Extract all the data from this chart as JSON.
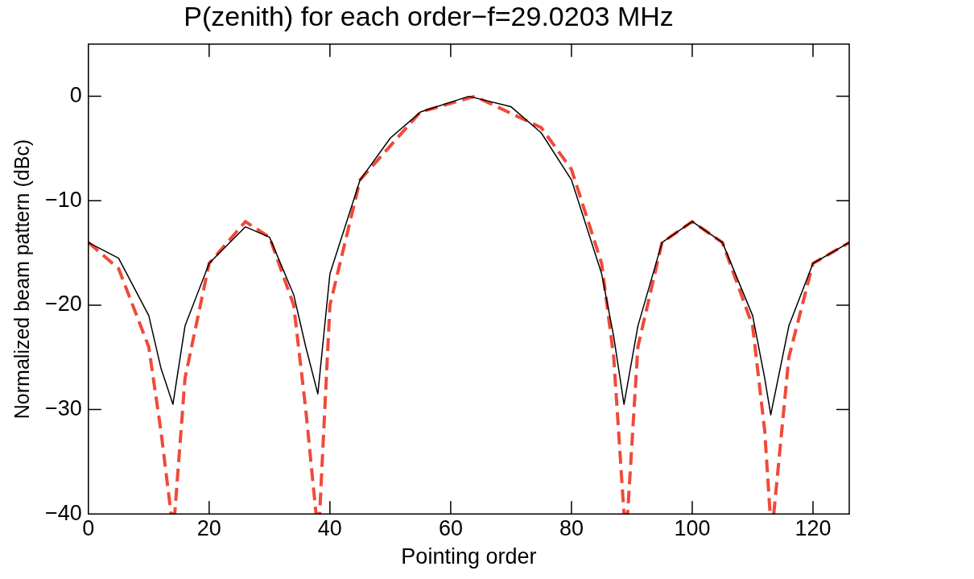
{
  "chart_data": {
    "type": "line",
    "title": "P(zenith) for each order−f=29.0203 MHz",
    "xlabel": "Pointing order",
    "ylabel": "Normalized beam pattern (dBc)",
    "xlim": [
      0,
      126
    ],
    "ylim": [
      -40,
      5
    ],
    "xticks": [
      0,
      20,
      40,
      60,
      80,
      100,
      120
    ],
    "yticks": [
      {
        "value": 0,
        "label": "0"
      },
      {
        "value": -10,
        "label": "−10"
      },
      {
        "value": -20,
        "label": "−20"
      },
      {
        "value": -30,
        "label": "−30"
      },
      {
        "value": -40,
        "label": "−40"
      }
    ],
    "grid": false,
    "legend": false,
    "marker": "none",
    "series": [
      {
        "color": "#000000",
        "line_style": "solid",
        "x": [
          0,
          5,
          10,
          12,
          14,
          16,
          20,
          26,
          30,
          34,
          36,
          38,
          40,
          45,
          50,
          55,
          63,
          70,
          75,
          80,
          85,
          87,
          88.7,
          91,
          95,
          100,
          105,
          110,
          112,
          113,
          116,
          120,
          126
        ],
        "values": [
          -14,
          -15.5,
          -21,
          -26,
          -29.5,
          -22,
          -16,
          -12.5,
          -13.5,
          -19,
          -24,
          -28.5,
          -17,
          -8,
          -4,
          -1.5,
          0,
          -1,
          -3.5,
          -8,
          -17,
          -23,
          -29.5,
          -22,
          -14,
          -12,
          -14,
          -21,
          -27,
          -30.5,
          -22,
          -16,
          -14
        ]
      },
      {
        "color": "#f04a3a",
        "line_style": "dashed",
        "x": [
          0,
          5,
          10,
          12,
          13.7,
          14.3,
          16,
          20,
          26,
          30,
          34,
          36,
          37.7,
          38.3,
          40,
          45,
          55,
          64,
          75,
          80,
          85,
          87,
          88.7,
          89.3,
          91,
          95,
          100,
          105,
          110,
          112,
          112.9,
          113.5,
          116,
          120,
          126
        ],
        "values": [
          -14,
          -16.5,
          -24,
          -32,
          -40,
          -40,
          -27,
          -16,
          -12,
          -13.5,
          -20,
          -30,
          -40,
          -40,
          -20,
          -8,
          -1.5,
          0,
          -3,
          -7,
          -16,
          -25,
          -40,
          -40,
          -24,
          -14,
          -12,
          -14,
          -22,
          -32,
          -40,
          -40,
          -25,
          -16,
          -14
        ]
      }
    ]
  }
}
